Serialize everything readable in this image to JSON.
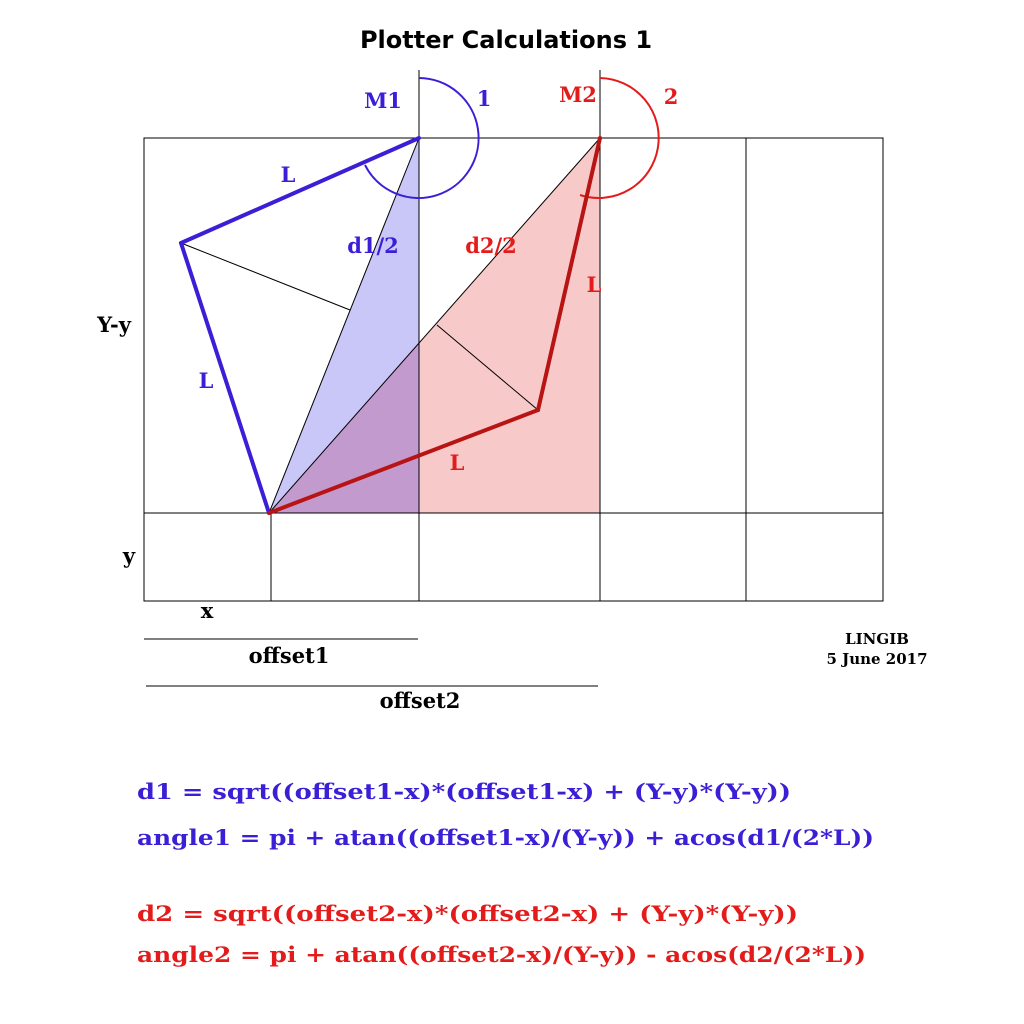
{
  "title": "Plotter Calculations 1",
  "colors": {
    "motor1": "#3a1fd6",
    "motor2": "#e31b1b",
    "fill1": "#c9c6f8",
    "fill2": "#f8c9c9",
    "overlap": "#c39ace"
  },
  "labels": {
    "m1": "M1",
    "m1_number": "1",
    "m2": "M2",
    "m2_number": "2",
    "arm_upper_left": "L",
    "arm_lower_left": "L",
    "arm_upper_right": "L",
    "arm_lower_right": "L",
    "d1_half": "d1/2",
    "d2_half": "d2/2",
    "y_minus_y": "Y-y",
    "y": "y",
    "x": "x",
    "offset1": "offset1",
    "offset2": "offset2"
  },
  "credit": {
    "author": "LINGIB",
    "date": "5 June 2017"
  },
  "formulas": {
    "d1": "d1 = sqrt((offset1-x)*(offset1-x) + (Y-y)*(Y-y))",
    "angle1": "angle1 = pi + atan((offset1-x)/(Y-y)) + acos(d1/(2*L))",
    "d2": "d2 =  sqrt((offset2-x)*(offset2-x) + (Y-y)*(Y-y))",
    "angle2": "angle2 = pi + atan((offset2-x)/(Y-y)) - acos(d2/(2*L))"
  }
}
